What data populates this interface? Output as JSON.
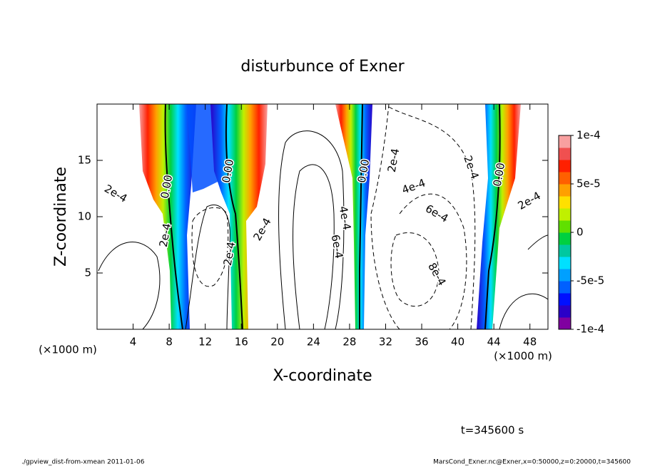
{
  "chart_data": {
    "type": "contour",
    "title": "disturbunce of Exner",
    "xlabel": "X-coordinate",
    "ylabel": "Z-coordinate",
    "xunit": "(×1000 m)",
    "yunit": "(×1000 m)",
    "xlim": [
      0,
      50
    ],
    "xticks": [
      4,
      8,
      12,
      16,
      20,
      24,
      28,
      32,
      36,
      40,
      44,
      48
    ],
    "ylim": [
      0,
      20
    ],
    "yticks": [
      5,
      10,
      15
    ],
    "colorbar_lim": [
      -0.0001,
      0.0001
    ],
    "colorbar_ticks": [
      {
        "value": 0.0001,
        "label": "1e-4"
      },
      {
        "value": 5e-05,
        "label": "5e-5"
      },
      0,
      {
        "value": -5e-05,
        "label": "-5e-5"
      },
      {
        "value": -0.0001,
        "label": "-1e-4"
      }
    ],
    "colorbar_colors": [
      "#8000a0",
      "#2a00c8",
      "#0010ff",
      "#0060ff",
      "#00a0ff",
      "#00e0ff",
      "#00c8a0",
      "#00d040",
      "#60e000",
      "#c0f000",
      "#ffe000",
      "#ffa000",
      "#ff6000",
      "#ff2000",
      "#f05050",
      "#f8a0a0"
    ],
    "contour_labels": [
      "0.00",
      "0.00",
      "0.00",
      "0.00",
      "2e-4",
      "2e-4",
      "2e-4",
      "2e-4",
      "2e-4",
      "2e-4",
      "4e-4",
      "4e-4",
      "6e-4",
      "6e-4",
      "8e-4",
      "2e-4"
    ],
    "time_label": "t=345600 s",
    "footer_left": "./gpview_dist-from-xmean  2011-01-06",
    "footer_right": "MarsCond_Exner.nc@Exner,x=0:50000,z=0:20000,t=345600"
  }
}
